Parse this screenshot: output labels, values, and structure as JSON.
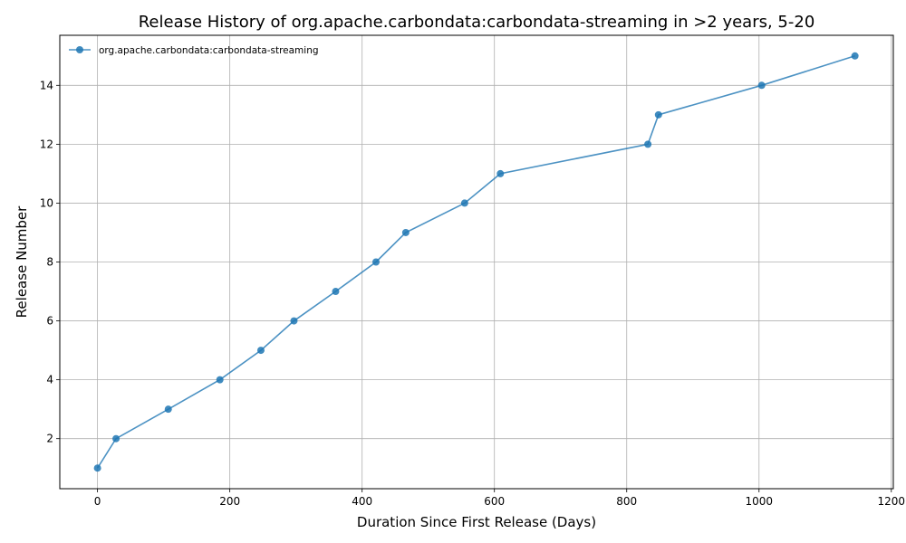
{
  "chart_data": {
    "type": "line",
    "title": "Release History of org.apache.carbondata:carbondata-streaming in >2 years, 5-20",
    "xlabel": "Duration Since First Release (Days)",
    "ylabel": "Release Number",
    "xlim": [
      -57,
      1203
    ],
    "ylim": [
      0.3,
      15.7
    ],
    "xticks": [
      0,
      200,
      400,
      600,
      800,
      1000,
      1200
    ],
    "yticks": [
      2,
      4,
      6,
      8,
      10,
      12,
      14
    ],
    "grid": true,
    "legend_position": "top-left",
    "series": [
      {
        "name": "org.apache.carbondata:carbondata-streaming",
        "color": "#1f77b4",
        "marker": "circle",
        "x": [
          0,
          28,
          107,
          185,
          247,
          297,
          360,
          421,
          466,
          555,
          609,
          832,
          848,
          1004,
          1145
        ],
        "y": [
          1,
          2,
          3,
          4,
          5,
          6,
          7,
          8,
          9,
          10,
          11,
          12,
          13,
          14,
          15
        ]
      }
    ]
  }
}
